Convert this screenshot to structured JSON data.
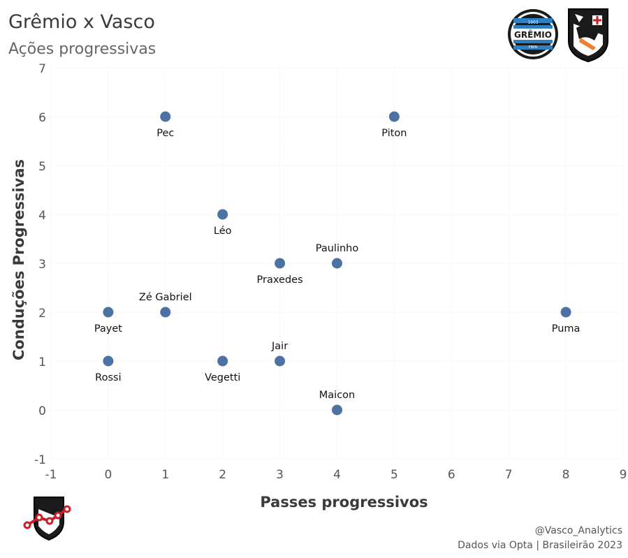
{
  "header": {
    "title": "Grêmio x Vasco",
    "subtitle": "Ações progressivas"
  },
  "logos": {
    "gremio": {
      "year": "1903",
      "name": "GRÊMIO",
      "abbr": "FBPA"
    }
  },
  "footer": {
    "handle": "@Vasco_Analytics",
    "source": "Dados via Opta | Brasileirão 2023"
  },
  "chart_data": {
    "type": "scatter",
    "xlabel": "Passes progressivos",
    "ylabel": "Conduções Progressivas",
    "xlim": [
      -1,
      9
    ],
    "ylim": [
      -1,
      7
    ],
    "xticks": [
      -1,
      0,
      1,
      2,
      3,
      4,
      5,
      6,
      7,
      8,
      9
    ],
    "yticks": [
      -1,
      0,
      1,
      2,
      3,
      4,
      5,
      6,
      7
    ],
    "grid": true,
    "point_color": "#4c72a4",
    "points": [
      {
        "label": "Pec",
        "x": 1,
        "y": 6,
        "label_pos": "below"
      },
      {
        "label": "Piton",
        "x": 5,
        "y": 6,
        "label_pos": "below"
      },
      {
        "label": "Léo",
        "x": 2,
        "y": 4,
        "label_pos": "below"
      },
      {
        "label": "Paulinho",
        "x": 4,
        "y": 3,
        "label_pos": "above"
      },
      {
        "label": "Praxedes",
        "x": 3,
        "y": 3,
        "label_pos": "below"
      },
      {
        "label": "Zé Gabriel",
        "x": 1,
        "y": 2,
        "label_pos": "above"
      },
      {
        "label": "Payet",
        "x": 0,
        "y": 2,
        "label_pos": "below"
      },
      {
        "label": "Puma",
        "x": 8,
        "y": 2,
        "label_pos": "below"
      },
      {
        "label": "Jair",
        "x": 3,
        "y": 1,
        "label_pos": "above"
      },
      {
        "label": "Rossi",
        "x": 0,
        "y": 1,
        "label_pos": "below"
      },
      {
        "label": "Vegetti",
        "x": 2,
        "y": 1,
        "label_pos": "below"
      },
      {
        "label": "Maicon",
        "x": 4,
        "y": 0,
        "label_pos": "above"
      }
    ]
  }
}
